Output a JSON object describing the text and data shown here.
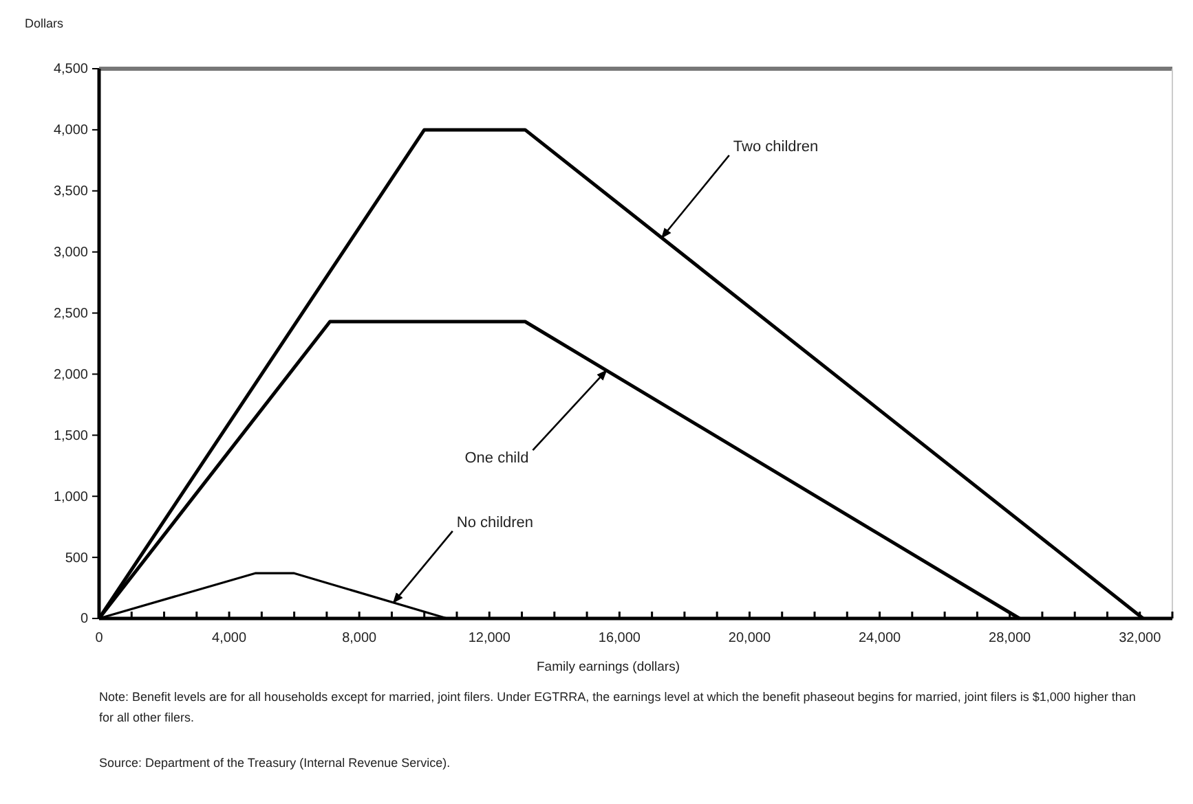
{
  "chart_data": {
    "type": "line",
    "ylabel": "Dollars",
    "xlabel": "Family earnings (dollars)",
    "xlim": [
      0,
      33000
    ],
    "xticks": [
      0,
      {
        "value": 1000,
        "label": null
      },
      {
        "value": 2000,
        "label": null
      },
      {
        "value": 3000,
        "label": null
      },
      {
        "value": 4000,
        "label": "4,000"
      },
      {
        "value": 5000,
        "label": null
      },
      {
        "value": 6000,
        "label": null
      },
      {
        "value": 7000,
        "label": null
      },
      {
        "value": 8000,
        "label": "8,000"
      },
      {
        "value": 9000,
        "label": null
      },
      {
        "value": 10000,
        "label": null
      },
      {
        "value": 11000,
        "label": null
      },
      {
        "value": 12000,
        "label": "12,000"
      },
      {
        "value": 13000,
        "label": null
      },
      {
        "value": 14000,
        "label": null
      },
      {
        "value": 15000,
        "label": null
      },
      {
        "value": 16000,
        "label": "16,000"
      },
      {
        "value": 17000,
        "label": null
      },
      {
        "value": 18000,
        "label": null
      },
      {
        "value": 19000,
        "label": null
      },
      {
        "value": 20000,
        "label": "20,000"
      },
      {
        "value": 21000,
        "label": null
      },
      {
        "value": 22000,
        "label": null
      },
      {
        "value": 23000,
        "label": null
      },
      {
        "value": 24000,
        "label": "24,000"
      },
      {
        "value": 25000,
        "label": null
      },
      {
        "value": 26000,
        "label": null
      },
      {
        "value": 27000,
        "label": null
      },
      {
        "value": 28000,
        "label": "28,000"
      },
      {
        "value": 29000,
        "label": null
      },
      {
        "value": 30000,
        "label": null
      },
      {
        "value": 31000,
        "label": null
      },
      {
        "value": 32000,
        "label": "32,000"
      },
      {
        "value": 33000,
        "label": null
      }
    ],
    "ylim": [
      0,
      4500
    ],
    "yticks": [
      0,
      500,
      {
        "value": 1000,
        "label": "1,000"
      },
      {
        "value": 1500,
        "label": "1,500"
      },
      {
        "value": 2000,
        "label": "2,000"
      },
      {
        "value": 2500,
        "label": "2,500"
      },
      {
        "value": 3000,
        "label": "3,000"
      },
      {
        "value": 3500,
        "label": "3,500"
      },
      {
        "value": 4000,
        "label": "4,000"
      },
      {
        "value": 4500,
        "label": "4,500"
      }
    ],
    "grid": false,
    "marker": "none",
    "line_style": "solid",
    "series": [
      {
        "color": "#000000",
        "x": [
          0,
          10000,
          13100,
          32100
        ],
        "values": [
          0,
          4000,
          4000,
          0
        ]
      },
      {
        "color": "#000000",
        "x": [
          0,
          7100,
          13100,
          28300
        ],
        "values": [
          0,
          2430,
          2430,
          0
        ]
      },
      {
        "color": "#000000",
        "x": [
          0,
          4800,
          6000,
          10700
        ],
        "values": [
          0,
          370,
          370,
          0
        ]
      }
    ],
    "annotations": [
      {
        "text": "Two children",
        "x": 17300,
        "y": 3116
      },
      {
        "text": "One child",
        "x": 15600,
        "y": 2030
      },
      {
        "text": "No children",
        "x": 9050,
        "y": 130
      },
      "Note: Benefit levels are for all households except for married, joint filers.  Under EGTRRA, the earnings level at which the benefit phaseout begins for married, joint filers is $1,000 higher than for all other filers.",
      "Source: Department of the Treasury (Internal Revenue Service)."
    ]
  }
}
